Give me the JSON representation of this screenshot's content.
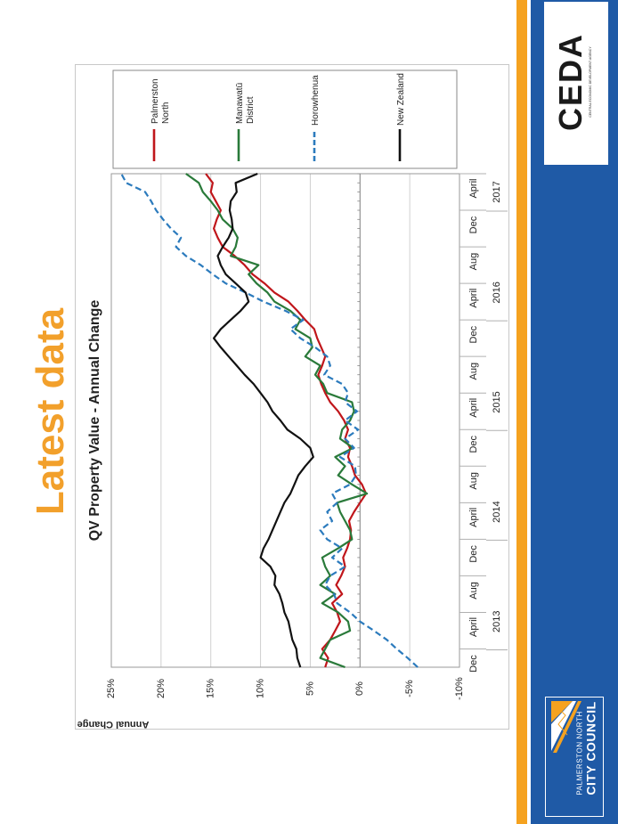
{
  "slide": {
    "title": "Latest data"
  },
  "branding": {
    "ceda": "CEDA",
    "ceda_subtitle": "CENTRAL ECONOMIC DEVELOPMENT AGENCY",
    "council_line1": "PALMERSTON NORTH",
    "council_line2": "CITY COUNCIL"
  },
  "colors": {
    "title": "#f2a02b",
    "blue_bar": "#1f5aa6",
    "orange_bar": "#f5a21f",
    "palmerston": "#c0161b",
    "manawatu": "#2a7a3a",
    "horowhenua": "#2c7bbd",
    "nz": "#111111"
  },
  "chart_data": {
    "type": "line",
    "title": "QV Property Value - Annual Change",
    "ylabel": "Annual Change",
    "xlabel": "",
    "ylim": [
      -10,
      25
    ],
    "yticks": [
      "-10%",
      "-5%",
      "0%",
      "5%",
      "10%",
      "15%",
      "20%",
      "25%"
    ],
    "ytick_values": [
      -10,
      -5,
      0,
      5,
      10,
      15,
      20,
      25
    ],
    "grid": true,
    "legend_position": "right",
    "month_labels": [
      "Dec",
      "April",
      "Aug",
      "Dec",
      "April",
      "Aug",
      "Dec",
      "April",
      "Aug",
      "Dec",
      "April",
      "Aug",
      "Dec",
      "April"
    ],
    "month_label_index": [
      0,
      4,
      8,
      12,
      16,
      20,
      24,
      28,
      32,
      36,
      40,
      44,
      48,
      52
    ],
    "year_labels": [
      "2013",
      "2014",
      "2015",
      "2016",
      "2017"
    ],
    "year_label_index": [
      5,
      17,
      29,
      41,
      52
    ],
    "series": [
      {
        "name": "Palmerston North",
        "color_key": "palmerston",
        "dash": false,
        "values": [
          3.5,
          3.2,
          3.8,
          3.0,
          2.5,
          2.0,
          2.3,
          2.8,
          1.8,
          2.4,
          1.9,
          1.5,
          1.7,
          1.3,
          1.0,
          0.9,
          1.1,
          0.6,
          0.0,
          -0.6,
          -0.2,
          0.5,
          0.8,
          1.2,
          1.0,
          1.5,
          1.2,
          1.6,
          2.2,
          3.0,
          3.5,
          3.9,
          4.2,
          3.8,
          3.5,
          3.9,
          4.3,
          4.6,
          5.5,
          6.3,
          7.2,
          8.6,
          9.6,
          10.8,
          11.6,
          12.6,
          13.8,
          14.3,
          14.7,
          14.4,
          14.0,
          14.5,
          15.0,
          14.8,
          15.5
        ]
      },
      {
        "name": "Manawatū District",
        "color_key": "manawatu",
        "dash": false,
        "values": [
          1.5,
          4.0,
          3.5,
          3.0,
          1.0,
          1.2,
          2.2,
          3.8,
          2.5,
          4.0,
          3.0,
          3.5,
          3.8,
          2.2,
          0.8,
          1.0,
          1.5,
          2.0,
          2.3,
          -0.7,
          0.8,
          2.2,
          1.5,
          2.5,
          0.7,
          2.0,
          1.8,
          1.0,
          0.6,
          0.8,
          3.3,
          3.7,
          4.5,
          4.0,
          5.5,
          4.8,
          5.0,
          6.5,
          6.0,
          7.0,
          8.6,
          9.3,
          10.4,
          11.2,
          10.2,
          13.0,
          12.5,
          12.3,
          12.8,
          13.8,
          14.3,
          15.0,
          15.8,
          16.2,
          17.5
        ]
      },
      {
        "name": "Horowhenua",
        "color_key": "horowhenua",
        "dash": true,
        "values": [
          -5.8,
          -4.8,
          -3.7,
          -2.7,
          -1.4,
          0.0,
          1.0,
          2.3,
          2.6,
          3.5,
          3.0,
          1.5,
          2.8,
          1.8,
          3.3,
          4.0,
          2.8,
          3.3,
          2.3,
          2.8,
          1.0,
          0.4,
          0.5,
          2.0,
          0.6,
          1.5,
          0.2,
          1.5,
          0.3,
          1.5,
          1.2,
          1.8,
          3.6,
          3.0,
          3.3,
          4.5,
          6.0,
          7.0,
          5.7,
          7.5,
          9.7,
          11.5,
          13.5,
          14.8,
          16.0,
          17.5,
          18.5,
          18.0,
          19.0,
          19.8,
          20.5,
          21.0,
          21.6,
          23.5,
          24.0
        ]
      },
      {
        "name": "New Zealand",
        "color_key": "nz",
        "dash": false,
        "values": [
          6.0,
          6.3,
          6.4,
          6.8,
          7.0,
          7.2,
          7.6,
          7.8,
          8.1,
          8.6,
          8.5,
          9.0,
          10.0,
          9.7,
          9.2,
          8.8,
          8.4,
          8.0,
          7.6,
          7.0,
          6.6,
          6.2,
          5.5,
          4.7,
          5.0,
          6.0,
          7.3,
          8.0,
          8.8,
          9.3,
          10.0,
          10.7,
          11.6,
          12.4,
          13.2,
          14.0,
          14.7,
          14.0,
          13.0,
          12.0,
          11.2,
          11.5,
          12.5,
          13.5,
          14.0,
          14.3,
          13.8,
          13.2,
          12.8,
          12.9,
          13.1,
          13.0,
          12.4,
          12.5,
          10.3
        ]
      }
    ]
  }
}
